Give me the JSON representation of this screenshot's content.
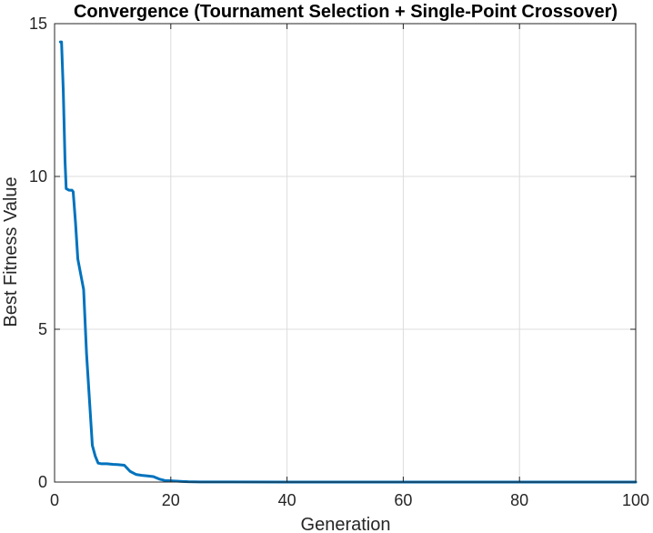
{
  "chart_data": {
    "type": "line",
    "title": "Convergence (Tournament Selection + Single-Point Crossover)",
    "xlabel": "Generation",
    "ylabel": "Best Fitness Value",
    "xlim": [
      0,
      100
    ],
    "ylim": [
      0,
      15
    ],
    "xticks": [
      0,
      20,
      40,
      60,
      80,
      100
    ],
    "yticks": [
      0,
      5,
      10,
      15
    ],
    "grid": true,
    "line_color": "#0072BD",
    "grid_color": "#dcdcdc",
    "axis_color": "#262626",
    "series": [
      {
        "x": [
          1,
          1.2,
          1.5,
          1.8,
          2,
          2.5,
          3,
          3.2,
          3.6,
          4,
          4.6,
          5,
          5.5,
          6,
          6.5,
          7,
          7.5,
          8,
          9,
          10,
          11,
          12,
          13,
          14,
          15,
          16,
          17,
          18,
          19,
          20,
          21,
          22,
          23,
          25,
          30,
          40,
          50,
          60,
          70,
          80,
          90,
          100
        ],
        "y": [
          14.4,
          14.4,
          12.8,
          10.5,
          9.6,
          9.55,
          9.55,
          9.5,
          8.5,
          7.3,
          6.7,
          6.3,
          4.2,
          2.7,
          1.2,
          0.85,
          0.62,
          0.6,
          0.6,
          0.58,
          0.57,
          0.55,
          0.35,
          0.25,
          0.22,
          0.2,
          0.18,
          0.1,
          0.05,
          0.04,
          0.03,
          0.02,
          0.01,
          0.005,
          0.002,
          0.001,
          0.0,
          0.0,
          0.0,
          0.0,
          0.0,
          0.0
        ]
      }
    ]
  }
}
